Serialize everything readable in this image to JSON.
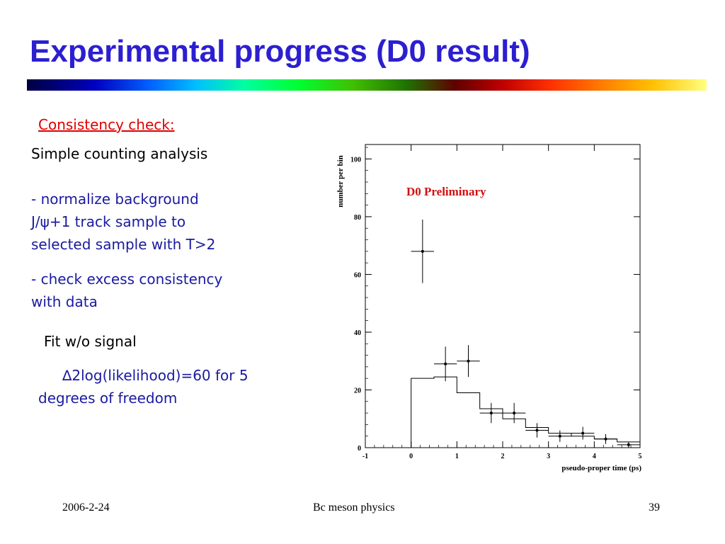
{
  "slide": {
    "title": "Experimental progress (D0 result)",
    "consistency_heading": "Consistency check:",
    "analysis_heading": "Simple counting analysis",
    "normalize_lines": [
      "- normalize background",
      "J/ψ+1 track  sample to",
      "selected sample with T>2"
    ],
    "excess_lines": [
      "- check excess consistency",
      "with data"
    ],
    "fit_heading": "Fit w/o signal",
    "likelihood_lines": [
      "∆2log(likelihood)=60 for 5",
      "degrees of freedom"
    ]
  },
  "footer": {
    "date": "2006-2-24",
    "center": "Bc meson physics",
    "page": "39"
  },
  "colors": {
    "title": "#2c1fd0",
    "heading_red": "#e00000",
    "body_blue": "#1a1aa0",
    "annotation_red": "#d01010"
  },
  "chart_data": {
    "type": "scatter",
    "annotation": "D0 Preliminary",
    "xlabel": "pseudo-proper time (ps)",
    "ylabel": "number per bin",
    "xlim": [
      -1,
      5
    ],
    "ylim": [
      0,
      105
    ],
    "xticks": [
      -1,
      0,
      1,
      2,
      3,
      4,
      5
    ],
    "yticks": [
      0,
      20,
      40,
      60,
      80,
      100
    ],
    "series": [
      {
        "kind": "points_with_errors",
        "x": [
          0.25,
          0.75,
          1.25,
          1.75,
          2.25,
          2.75,
          3.25,
          3.75,
          4.25,
          4.75
        ],
        "y": [
          68,
          29,
          30,
          12,
          12,
          6,
          4,
          5,
          3,
          1
        ],
        "y_err": [
          11,
          6,
          5.5,
          3.5,
          3.5,
          2.5,
          2,
          2.2,
          1.7,
          1
        ],
        "x_err": [
          0.25,
          0.25,
          0.25,
          0.25,
          0.25,
          0.25,
          0.25,
          0.25,
          0.25,
          0.25
        ]
      },
      {
        "kind": "step_histogram",
        "bin_edges": [
          0,
          0.5,
          1,
          1.5,
          2,
          2.5,
          3,
          3.5,
          4,
          4.5,
          5
        ],
        "values": [
          24,
          24.5,
          19,
          13.5,
          10,
          7,
          5,
          4,
          3,
          2
        ]
      }
    ]
  }
}
